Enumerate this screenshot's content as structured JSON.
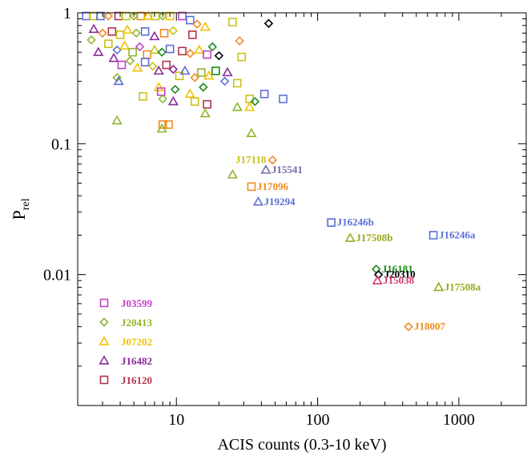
{
  "chart_data": {
    "type": "scatter",
    "xlabel": "ACIS counts (0.3-10 keV)",
    "ylabel": "P",
    "ylabel_sub": "rel",
    "xscale": "log",
    "yscale": "log",
    "xlim": [
      2,
      3000
    ],
    "ylim": [
      0.001,
      1
    ],
    "x_ticks": [
      10,
      100,
      1000
    ],
    "x_tick_labels": [
      "10",
      "100",
      "1000"
    ],
    "y_ticks": [
      0.01,
      0.1,
      1
    ],
    "y_tick_labels": [
      "0.01",
      "0.1",
      "1"
    ],
    "legend_position": "bottom-left",
    "legend": [
      {
        "label": "J03599",
        "marker": "square",
        "color": "#c23fc9"
      },
      {
        "label": "J20413",
        "marker": "diamond",
        "color": "#8fb52a"
      },
      {
        "label": "J07202",
        "marker": "triangle",
        "color": "#f2c200"
      },
      {
        "label": "J16482",
        "marker": "triangle",
        "color": "#8a2a9a"
      },
      {
        "label": "J16120",
        "marker": "square",
        "color": "#b0344a"
      }
    ],
    "labeled_points": [
      {
        "label": "J17118",
        "x": 48,
        "y": 0.075,
        "marker": "diamond",
        "color": "#f08a1e",
        "label_color": "#c9c21a",
        "label_side": "left"
      },
      {
        "label": "J15541",
        "x": 43,
        "y": 0.063,
        "marker": "triangle",
        "color": "#6e6ea8",
        "label_color": "#6e6ea8",
        "label_side": "right"
      },
      {
        "label": "J17096",
        "x": 34,
        "y": 0.047,
        "marker": "square",
        "color": "#f08a1e",
        "label_color": "#f08a1e",
        "label_side": "right"
      },
      {
        "label": "J19294",
        "x": 38,
        "y": 0.036,
        "marker": "triangle",
        "color": "#5b6fd6",
        "label_color": "#5b6fd6",
        "label_side": "right"
      },
      {
        "label": "J16246b",
        "x": 125,
        "y": 0.025,
        "marker": "square",
        "color": "#5b6fd6",
        "label_color": "#5b6fd6",
        "label_side": "right"
      },
      {
        "label": "J17508b",
        "x": 170,
        "y": 0.019,
        "marker": "triangle",
        "color": "#9aa820",
        "label_color": "#9aa820",
        "label_side": "right"
      },
      {
        "label": "J16246a",
        "x": 660,
        "y": 0.02,
        "marker": "square",
        "color": "#5b6fd6",
        "label_color": "#5b6fd6",
        "label_side": "right"
      },
      {
        "label": "J16181",
        "x": 260,
        "y": 0.011,
        "marker": "diamond",
        "color": "#1a8a1a",
        "label_color": "#1a8a1a",
        "label_side": "right"
      },
      {
        "label": "J20310",
        "x": 270,
        "y": 0.01,
        "marker": "diamond",
        "color": "#000000",
        "label_color": "#000000",
        "label_side": "right"
      },
      {
        "label": "J15038",
        "x": 265,
        "y": 0.009,
        "marker": "triangle",
        "color": "#d43a6a",
        "label_color": "#d43a6a",
        "label_side": "right"
      },
      {
        "label": "J17508a",
        "x": 720,
        "y": 0.008,
        "marker": "triangle",
        "color": "#9aa820",
        "label_color": "#9aa820",
        "label_side": "right"
      },
      {
        "label": "J18007",
        "x": 440,
        "y": 0.004,
        "marker": "diamond",
        "color": "#f08a1e",
        "label_color": "#f08a1e",
        "label_side": "right"
      }
    ],
    "points": [
      {
        "x": 2.3,
        "y": 1.0,
        "marker": "square",
        "color": "#5b6fd6"
      },
      {
        "x": 2.6,
        "y": 1.0,
        "marker": "square",
        "color": "#c9c21a"
      },
      {
        "x": 2.9,
        "y": 1.0,
        "marker": "square",
        "color": "#5b6fd6"
      },
      {
        "x": 3.3,
        "y": 1.0,
        "marker": "diamond",
        "color": "#f08a1e"
      },
      {
        "x": 3.9,
        "y": 1.0,
        "marker": "square",
        "color": "#b0344a"
      },
      {
        "x": 4.4,
        "y": 1.0,
        "marker": "square",
        "color": "#c9c21a"
      },
      {
        "x": 5.0,
        "y": 1.0,
        "marker": "diamond",
        "color": "#8fb52a"
      },
      {
        "x": 5.6,
        "y": 1.0,
        "marker": "square",
        "color": "#f08a1e"
      },
      {
        "x": 6.3,
        "y": 1.0,
        "marker": "triangle",
        "color": "#f2c200"
      },
      {
        "x": 7.1,
        "y": 1.0,
        "marker": "square",
        "color": "#c9c21a"
      },
      {
        "x": 8.0,
        "y": 1.0,
        "marker": "diamond",
        "color": "#8fb52a"
      },
      {
        "x": 9.0,
        "y": 1.0,
        "marker": "square",
        "color": "#f2c200"
      },
      {
        "x": 11.0,
        "y": 0.95,
        "marker": "square",
        "color": "#c23fc9"
      },
      {
        "x": 12.5,
        "y": 0.88,
        "marker": "square",
        "color": "#5b6fd6"
      },
      {
        "x": 14.0,
        "y": 0.82,
        "marker": "diamond",
        "color": "#f08a1e"
      },
      {
        "x": 16.0,
        "y": 0.78,
        "marker": "triangle",
        "color": "#f2c200"
      },
      {
        "x": 25.0,
        "y": 0.85,
        "marker": "square",
        "color": "#c9c21a"
      },
      {
        "x": 45.0,
        "y": 0.83,
        "marker": "diamond",
        "color": "#000000"
      },
      {
        "x": 2.6,
        "y": 0.75,
        "marker": "triangle",
        "color": "#8a2a9a"
      },
      {
        "x": 3.0,
        "y": 0.7,
        "marker": "diamond",
        "color": "#f08a1e"
      },
      {
        "x": 3.5,
        "y": 0.72,
        "marker": "square",
        "color": "#b0344a"
      },
      {
        "x": 4.0,
        "y": 0.68,
        "marker": "square",
        "color": "#c9c21a"
      },
      {
        "x": 4.5,
        "y": 0.74,
        "marker": "triangle",
        "color": "#f2c200"
      },
      {
        "x": 5.2,
        "y": 0.7,
        "marker": "diamond",
        "color": "#8fb52a"
      },
      {
        "x": 6.0,
        "y": 0.72,
        "marker": "square",
        "color": "#5b6fd6"
      },
      {
        "x": 7.0,
        "y": 0.66,
        "marker": "triangle",
        "color": "#8a2a9a"
      },
      {
        "x": 8.2,
        "y": 0.7,
        "marker": "square",
        "color": "#f08a1e"
      },
      {
        "x": 9.5,
        "y": 0.73,
        "marker": "diamond",
        "color": "#c9c21a"
      },
      {
        "x": 13.0,
        "y": 0.68,
        "marker": "square",
        "color": "#b0344a"
      },
      {
        "x": 28.0,
        "y": 0.61,
        "marker": "diamond",
        "color": "#f08a1e"
      },
      {
        "x": 18.0,
        "y": 0.55,
        "marker": "diamond",
        "color": "#1a8a1a"
      },
      {
        "x": 2.5,
        "y": 0.62,
        "marker": "diamond",
        "color": "#8fb52a"
      },
      {
        "x": 2.8,
        "y": 0.5,
        "marker": "triangle",
        "color": "#8a2a9a"
      },
      {
        "x": 3.3,
        "y": 0.58,
        "marker": "square",
        "color": "#c9c21a"
      },
      {
        "x": 3.8,
        "y": 0.52,
        "marker": "diamond",
        "color": "#5b6fd6"
      },
      {
        "x": 4.3,
        "y": 0.56,
        "marker": "triangle",
        "color": "#f2c200"
      },
      {
        "x": 4.9,
        "y": 0.5,
        "marker": "square",
        "color": "#8fb52a"
      },
      {
        "x": 5.5,
        "y": 0.55,
        "marker": "diamond",
        "color": "#c23fc9"
      },
      {
        "x": 6.2,
        "y": 0.48,
        "marker": "square",
        "color": "#f08a1e"
      },
      {
        "x": 7.0,
        "y": 0.52,
        "marker": "triangle",
        "color": "#c9c21a"
      },
      {
        "x": 7.9,
        "y": 0.5,
        "marker": "diamond",
        "color": "#1a8a1a"
      },
      {
        "x": 9.0,
        "y": 0.53,
        "marker": "square",
        "color": "#5b6fd6"
      },
      {
        "x": 11.0,
        "y": 0.51,
        "marker": "square",
        "color": "#b0344a"
      },
      {
        "x": 12.5,
        "y": 0.49,
        "marker": "diamond",
        "color": "#f08a1e"
      },
      {
        "x": 14.5,
        "y": 0.52,
        "marker": "triangle",
        "color": "#f2c200"
      },
      {
        "x": 16.5,
        "y": 0.48,
        "marker": "square",
        "color": "#c23fc9"
      },
      {
        "x": 20.0,
        "y": 0.47,
        "marker": "diamond",
        "color": "#000000"
      },
      {
        "x": 29.0,
        "y": 0.46,
        "marker": "square",
        "color": "#c9c21a"
      },
      {
        "x": 3.6,
        "y": 0.45,
        "marker": "triangle",
        "color": "#8a2a9a"
      },
      {
        "x": 4.1,
        "y": 0.4,
        "marker": "square",
        "color": "#c23fc9"
      },
      {
        "x": 4.7,
        "y": 0.43,
        "marker": "diamond",
        "color": "#8fb52a"
      },
      {
        "x": 5.3,
        "y": 0.38,
        "marker": "triangle",
        "color": "#f2c200"
      },
      {
        "x": 6.0,
        "y": 0.42,
        "marker": "square",
        "color": "#5b6fd6"
      },
      {
        "x": 6.8,
        "y": 0.39,
        "marker": "diamond",
        "color": "#c9c21a"
      },
      {
        "x": 7.5,
        "y": 0.36,
        "marker": "triangle",
        "color": "#8a2a9a"
      },
      {
        "x": 8.5,
        "y": 0.4,
        "marker": "square",
        "color": "#b0344a"
      },
      {
        "x": 9.5,
        "y": 0.37,
        "marker": "diamond",
        "color": "#8a2a9a"
      },
      {
        "x": 10.5,
        "y": 0.33,
        "marker": "square",
        "color": "#c9c21a"
      },
      {
        "x": 11.5,
        "y": 0.36,
        "marker": "triangle",
        "color": "#5b6fd6"
      },
      {
        "x": 13.5,
        "y": 0.32,
        "marker": "diamond",
        "color": "#f08a1e"
      },
      {
        "x": 15.0,
        "y": 0.35,
        "marker": "square",
        "color": "#8fb52a"
      },
      {
        "x": 17.0,
        "y": 0.33,
        "marker": "triangle",
        "color": "#f2c200"
      },
      {
        "x": 19.0,
        "y": 0.36,
        "marker": "square",
        "color": "#1a8a1a"
      },
      {
        "x": 22.0,
        "y": 0.3,
        "marker": "diamond",
        "color": "#5b6fd6"
      },
      {
        "x": 23.0,
        "y": 0.35,
        "marker": "triangle",
        "color": "#8a2a9a"
      },
      {
        "x": 27.0,
        "y": 0.29,
        "marker": "square",
        "color": "#c9c21a"
      },
      {
        "x": 3.8,
        "y": 0.32,
        "marker": "diamond",
        "color": "#8fb52a"
      },
      {
        "x": 3.9,
        "y": 0.3,
        "marker": "triangle",
        "color": "#5b6fd6"
      },
      {
        "x": 5.8,
        "y": 0.23,
        "marker": "square",
        "color": "#c9c21a"
      },
      {
        "x": 7.5,
        "y": 0.27,
        "marker": "triangle",
        "color": "#f2c200"
      },
      {
        "x": 7.8,
        "y": 0.25,
        "marker": "square",
        "color": "#c23fc9"
      },
      {
        "x": 8.0,
        "y": 0.22,
        "marker": "diamond",
        "color": "#8fb52a"
      },
      {
        "x": 9.5,
        "y": 0.21,
        "marker": "triangle",
        "color": "#8a2a9a"
      },
      {
        "x": 9.8,
        "y": 0.26,
        "marker": "diamond",
        "color": "#1a8a1a"
      },
      {
        "x": 12.5,
        "y": 0.24,
        "marker": "triangle",
        "color": "#f2c200"
      },
      {
        "x": 13.5,
        "y": 0.21,
        "marker": "square",
        "color": "#c9c21a"
      },
      {
        "x": 15.5,
        "y": 0.27,
        "marker": "diamond",
        "color": "#1a8a1a"
      },
      {
        "x": 16.5,
        "y": 0.2,
        "marker": "square",
        "color": "#b0344a"
      },
      {
        "x": 16.0,
        "y": 0.17,
        "marker": "triangle",
        "color": "#8fb52a"
      },
      {
        "x": 27.0,
        "y": 0.19,
        "marker": "triangle",
        "color": "#8fb52a"
      },
      {
        "x": 33.0,
        "y": 0.22,
        "marker": "square",
        "color": "#c9c21a"
      },
      {
        "x": 33.0,
        "y": 0.19,
        "marker": "triangle",
        "color": "#f2c200"
      },
      {
        "x": 36.0,
        "y": 0.21,
        "marker": "diamond",
        "color": "#1a8a1a"
      },
      {
        "x": 42.0,
        "y": 0.24,
        "marker": "square",
        "color": "#5b6fd6"
      },
      {
        "x": 57.0,
        "y": 0.22,
        "marker": "square",
        "color": "#5b6fd6"
      },
      {
        "x": 3.8,
        "y": 0.15,
        "marker": "triangle",
        "color": "#8fb52a"
      },
      {
        "x": 8.0,
        "y": 0.14,
        "marker": "square",
        "color": "#f08a1e"
      },
      {
        "x": 8.8,
        "y": 0.14,
        "marker": "square",
        "color": "#f08a1e"
      },
      {
        "x": 7.9,
        "y": 0.13,
        "marker": "triangle",
        "color": "#8fb52a"
      },
      {
        "x": 34.0,
        "y": 0.12,
        "marker": "triangle",
        "color": "#8fb52a"
      },
      {
        "x": 25.0,
        "y": 0.058,
        "marker": "triangle",
        "color": "#8fb52a"
      }
    ]
  }
}
